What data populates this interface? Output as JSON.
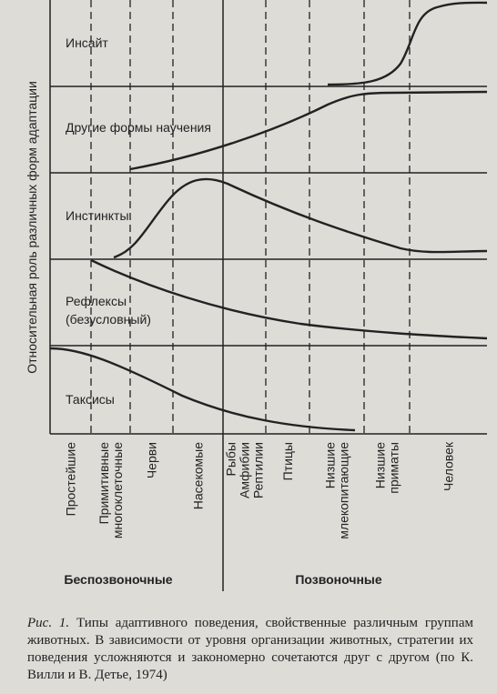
{
  "y_axis_label": "Относительная роль различных форм адаптации",
  "panels": [
    "Инсайт",
    "Другие формы научения",
    "Инстинкты",
    "Рефлексы",
    "(безусловный)",
    "Таксисы"
  ],
  "columns": [
    [
      "Простейшие"
    ],
    [
      "Примитивные",
      "многоклеточные"
    ],
    [
      "Черви"
    ],
    [
      "Насекомые"
    ],
    [
      "Рыбы",
      "Амфибии",
      "Рептилии"
    ],
    [
      "Птицы"
    ],
    [
      "Низшие",
      "млекопитающие"
    ],
    [
      "Низшие",
      "приматы"
    ],
    [
      "Человек"
    ]
  ],
  "groups": [
    "Беспозвоночные",
    "Позвоночные"
  ],
  "caption": {
    "label": "Рис. 1.",
    "text": "Типы адаптивного поведения, свойственные различным группам животных. В зависимости от уровня организации животных, стратегии их поведения усложняются и закономерно сочетаются друг с другом (по К. Вилли и В. Детье, 1974)"
  }
}
